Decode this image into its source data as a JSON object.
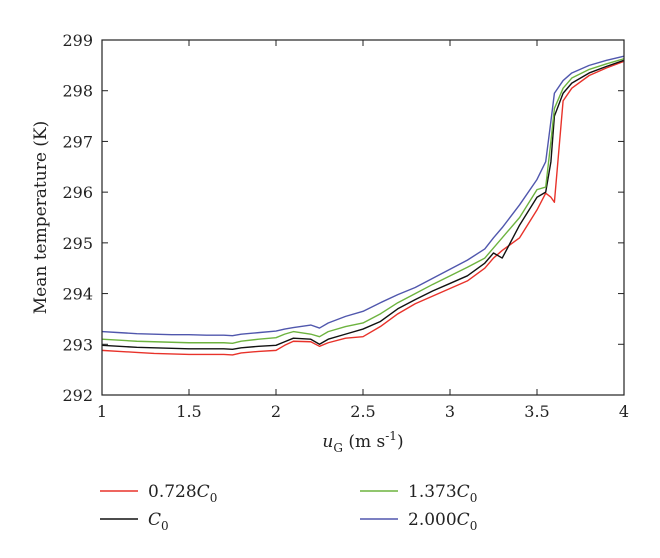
{
  "chart_data": {
    "type": "line",
    "xlabel": "u_G (m s^-1)",
    "ylabel": "Mean temperature (K)",
    "xlim": [
      1,
      4
    ],
    "ylim": [
      292,
      299
    ],
    "xticks": [
      "1",
      "1.5",
      "2",
      "2.5",
      "3",
      "3.5",
      "4"
    ],
    "yticks": [
      "292",
      "293",
      "294",
      "295",
      "296",
      "297",
      "298",
      "299"
    ],
    "grid": false,
    "legend_position": "bottom",
    "x": [
      1.0,
      1.1,
      1.2,
      1.3,
      1.4,
      1.5,
      1.6,
      1.7,
      1.75,
      1.8,
      1.9,
      2.0,
      2.05,
      2.1,
      2.2,
      2.25,
      2.3,
      2.4,
      2.5,
      2.6,
      2.7,
      2.8,
      2.9,
      3.0,
      3.1,
      3.2,
      3.25,
      3.3,
      3.4,
      3.5,
      3.55,
      3.58,
      3.6,
      3.65,
      3.7,
      3.8,
      3.9,
      4.0
    ],
    "series": [
      {
        "name": "0.728C₀",
        "color": "#e8322a",
        "values": [
          292.88,
          292.86,
          292.84,
          292.82,
          292.81,
          292.8,
          292.8,
          292.8,
          292.79,
          292.83,
          292.86,
          292.88,
          292.98,
          293.06,
          293.05,
          292.96,
          293.03,
          293.12,
          293.15,
          293.35,
          293.6,
          293.8,
          293.95,
          294.1,
          294.25,
          294.5,
          294.7,
          294.85,
          295.1,
          295.65,
          295.98,
          295.9,
          295.8,
          297.8,
          298.05,
          298.3,
          298.45,
          298.58
        ]
      },
      {
        "name": "C₀",
        "color": "#111111",
        "values": [
          292.98,
          292.96,
          292.94,
          292.93,
          292.92,
          292.91,
          292.91,
          292.91,
          292.9,
          292.93,
          292.96,
          292.98,
          293.05,
          293.12,
          293.1,
          293.0,
          293.1,
          293.2,
          293.3,
          293.45,
          293.7,
          293.88,
          294.05,
          294.2,
          294.35,
          294.6,
          294.8,
          294.7,
          295.35,
          295.9,
          296.0,
          296.6,
          297.5,
          297.95,
          298.15,
          298.35,
          298.48,
          298.6
        ]
      },
      {
        "name": "1.373C₀",
        "color": "#6db33f",
        "values": [
          293.1,
          293.08,
          293.06,
          293.05,
          293.04,
          293.03,
          293.03,
          293.03,
          293.02,
          293.06,
          293.1,
          293.13,
          293.2,
          293.25,
          293.2,
          293.15,
          293.25,
          293.35,
          293.42,
          293.6,
          293.82,
          294.0,
          294.18,
          294.35,
          294.52,
          294.7,
          294.9,
          295.1,
          295.5,
          296.05,
          296.1,
          297.0,
          297.65,
          298.05,
          298.25,
          298.42,
          298.53,
          298.63
        ]
      },
      {
        "name": "2.000C₀",
        "color": "#5057ad",
        "values": [
          293.25,
          293.23,
          293.21,
          293.2,
          293.19,
          293.19,
          293.18,
          293.18,
          293.17,
          293.2,
          293.23,
          293.26,
          293.3,
          293.33,
          293.38,
          293.32,
          293.42,
          293.55,
          293.65,
          293.82,
          293.98,
          294.12,
          294.3,
          294.48,
          294.66,
          294.88,
          295.1,
          295.3,
          295.75,
          296.25,
          296.6,
          297.4,
          297.95,
          298.2,
          298.35,
          298.5,
          298.6,
          298.68
        ]
      }
    ]
  }
}
